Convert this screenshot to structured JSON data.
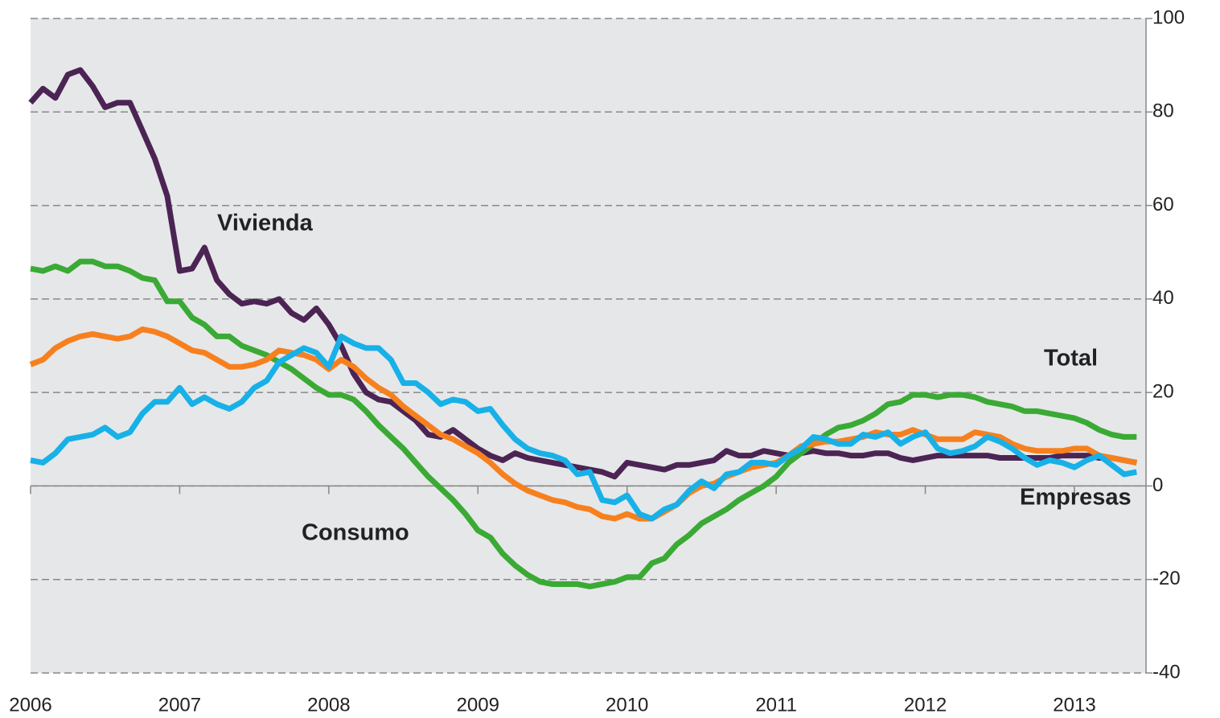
{
  "chart_data": {
    "type": "line",
    "x": [
      2006,
      2006.0833,
      2006.1667,
      2006.25,
      2006.3333,
      2006.4167,
      2006.5,
      2006.5833,
      2006.6667,
      2006.75,
      2006.8333,
      2006.9167,
      2007,
      2007.0833,
      2007.1667,
      2007.25,
      2007.3333,
      2007.4167,
      2007.5,
      2007.5833,
      2007.6667,
      2007.75,
      2007.8333,
      2007.9167,
      2008,
      2008.0833,
      2008.1667,
      2008.25,
      2008.3333,
      2008.4167,
      2008.5,
      2008.5833,
      2008.6667,
      2008.75,
      2008.8333,
      2008.9167,
      2009,
      2009.0833,
      2009.1667,
      2009.25,
      2009.3333,
      2009.4167,
      2009.5,
      2009.5833,
      2009.6667,
      2009.75,
      2009.8333,
      2009.9167,
      2010,
      2010.0833,
      2010.1667,
      2010.25,
      2010.3333,
      2010.4167,
      2010.5,
      2010.5833,
      2010.6667,
      2010.75,
      2010.8333,
      2010.9167,
      2011,
      2011.0833,
      2011.1667,
      2011.25,
      2011.3333,
      2011.4167,
      2011.5,
      2011.5833,
      2011.6667,
      2011.75,
      2011.8333,
      2011.9167,
      2012,
      2012.0833,
      2012.1667,
      2012.25,
      2012.3333,
      2012.4167,
      2012.5,
      2012.5833,
      2012.6667,
      2012.75,
      2012.8333,
      2012.9167,
      2013,
      2013.0833,
      2013.1667,
      2013.25,
      2013.3333,
      2013.4167
    ],
    "series": [
      {
        "name": "Vivienda",
        "color": "#4b2454",
        "values": [
          82,
          85,
          83,
          88,
          89,
          85.5,
          81,
          82,
          82,
          76,
          70,
          62,
          46,
          46.5,
          51,
          44,
          41,
          39,
          39.5,
          39,
          40,
          37,
          35.5,
          38,
          34.5,
          30,
          24,
          20,
          18.5,
          18,
          16,
          14,
          11,
          10.5,
          12,
          10,
          8,
          6.5,
          5.5,
          7,
          6,
          5.5,
          5,
          4.5,
          4,
          3.5,
          3,
          2,
          5,
          4.5,
          4,
          3.5,
          4.5,
          4.5,
          5,
          5.5,
          7.5,
          6.5,
          6.5,
          7.5,
          7,
          6.5,
          7,
          7.5,
          7,
          7,
          6.5,
          6.5,
          7,
          7,
          6,
          5.5,
          6,
          6.5,
          6.5,
          6.5,
          6.5,
          6.5,
          6,
          6,
          6,
          6,
          6,
          6.5,
          6.5,
          6.5,
          6,
          6,
          5.5,
          5
        ]
      },
      {
        "name": "Consumo",
        "color": "#3aaa35",
        "values": [
          46.5,
          46,
          47,
          46,
          48,
          48,
          47,
          47,
          46,
          44.5,
          44,
          39.5,
          39.5,
          36,
          34.5,
          32,
          32,
          30,
          29,
          28,
          26.5,
          25,
          23,
          21,
          19.5,
          19.5,
          18.5,
          16,
          13,
          10.5,
          8,
          5,
          2,
          -0.5,
          -3,
          -6,
          -9.5,
          -11,
          -14.5,
          -17,
          -19,
          -20.5,
          -21,
          -21,
          -21,
          -21.5,
          -21,
          -20.5,
          -19.5,
          -19.5,
          -16.5,
          -15.5,
          -12.5,
          -10.5,
          -8,
          -6.5,
          -5,
          -3,
          -1.5,
          0,
          2,
          5,
          7,
          9,
          11,
          12.5,
          13,
          14,
          15.5,
          17.5,
          18,
          19.5,
          19.5,
          19,
          19.5,
          19.5,
          19,
          18,
          17.5,
          17,
          16,
          16,
          15.5,
          15,
          14.5,
          13.5,
          12,
          11,
          10.5,
          10.5
        ]
      },
      {
        "name": "Total",
        "color": "#f7801e",
        "values": [
          26,
          27,
          29.5,
          31,
          32,
          32.5,
          32,
          31.5,
          32,
          33.5,
          33,
          32,
          30.5,
          29,
          28.5,
          27,
          25.5,
          25.5,
          26,
          27,
          29,
          28.5,
          28,
          27,
          25,
          27,
          25.5,
          23,
          21,
          19.5,
          17,
          15,
          13,
          11,
          10,
          8.5,
          7,
          5,
          2.5,
          0.5,
          -1,
          -2,
          -3,
          -3.5,
          -4.5,
          -5,
          -6.5,
          -7,
          -6,
          -7,
          -7,
          -5.5,
          -4,
          -1.5,
          0,
          0.5,
          2,
          3,
          4,
          4.5,
          5,
          6.5,
          8.5,
          9,
          9.5,
          9.5,
          10,
          10.5,
          11.5,
          11,
          11,
          12,
          11,
          10,
          10,
          10,
          11.5,
          11,
          10.5,
          9,
          8,
          7.5,
          7.5,
          7.5,
          8,
          8,
          6.5,
          6,
          5.5,
          5
        ]
      },
      {
        "name": "Empresas",
        "color": "#17b1e8",
        "values": [
          5.5,
          5,
          7,
          10,
          10.5,
          11,
          12.5,
          10.5,
          11.5,
          15.5,
          18,
          18,
          21,
          17.5,
          19,
          17.5,
          16.5,
          18,
          21,
          22.5,
          26.5,
          28,
          29.5,
          28.5,
          25.5,
          32,
          30.5,
          29.5,
          29.5,
          27,
          22,
          22,
          20,
          17.5,
          18.5,
          18,
          16,
          16.5,
          13,
          10,
          8,
          7,
          6.5,
          5.5,
          2.5,
          3,
          -3,
          -3.5,
          -2,
          -6,
          -7,
          -5,
          -4,
          -1,
          1,
          -0.5,
          2.5,
          3,
          5,
          5,
          4.5,
          6.5,
          8,
          10.5,
          10,
          9,
          9,
          11,
          10.5,
          11.5,
          9,
          10.5,
          11.5,
          8,
          7,
          7.5,
          8.5,
          10.5,
          9.5,
          8,
          6,
          4.5,
          5.5,
          5,
          4,
          5.5,
          6.5,
          4.5,
          2.5,
          3
        ]
      }
    ],
    "xlim": [
      2006,
      2013.48
    ],
    "xticks": [
      2006,
      2007,
      2008,
      2009,
      2010,
      2011,
      2012,
      2013
    ],
    "ylim": [
      -40,
      100
    ],
    "yticks": [
      -40,
      -20,
      0,
      20,
      40,
      60,
      80,
      100
    ],
    "grid": true
  }
}
